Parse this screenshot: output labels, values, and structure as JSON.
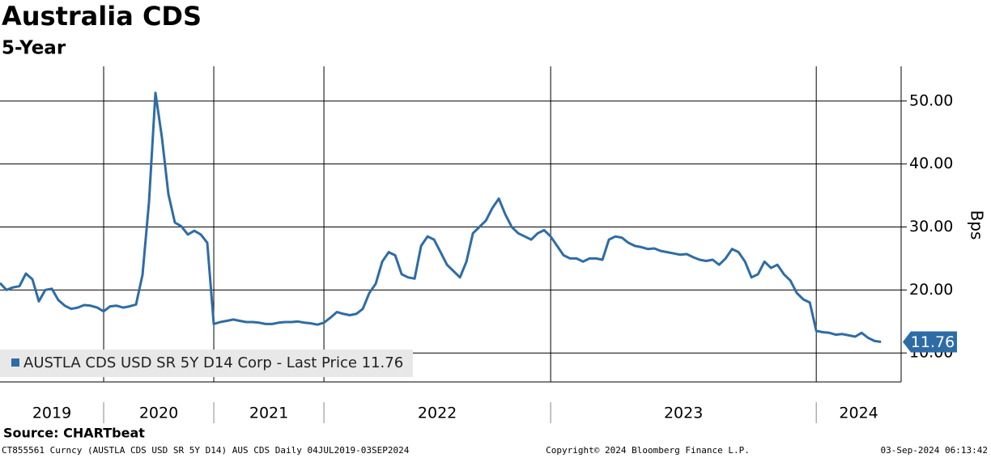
{
  "chart_data": {
    "type": "line",
    "title": "Australia CDS",
    "subtitle": "5-Year",
    "y_label": "Bps",
    "categories": [
      "2019",
      null,
      null,
      null,
      null,
      null,
      null,
      null,
      null,
      null,
      null,
      null,
      null,
      null,
      null,
      null,
      "2020",
      null,
      null,
      null,
      null,
      null,
      null,
      null,
      null,
      null,
      null,
      null,
      null,
      null,
      null,
      null,
      null,
      "2021",
      null,
      null,
      null,
      null,
      null,
      null,
      null,
      null,
      null,
      null,
      null,
      null,
      null,
      null,
      null,
      null,
      "2022",
      null,
      null,
      null,
      null,
      null,
      null,
      null,
      null,
      null,
      null,
      null,
      null,
      null,
      null,
      null,
      null,
      null,
      null,
      null,
      null,
      null,
      null,
      null,
      null,
      null,
      null,
      null,
      null,
      null,
      null,
      null,
      null,
      null,
      null,
      "2023",
      null,
      null,
      null,
      null,
      null,
      null,
      null,
      null,
      null,
      null,
      null,
      null,
      null,
      null,
      null,
      null,
      null,
      null,
      null,
      null,
      null,
      null,
      null,
      null,
      null,
      null,
      null,
      null,
      null,
      null,
      null,
      null,
      null,
      null,
      null,
      null,
      null,
      null,
      null,
      null,
      "2024",
      null,
      null,
      null,
      null,
      null,
      null,
      null,
      null,
      null,
      null
    ],
    "series": [
      {
        "name": "AUSTLA CDS USD SR 5Y D14 Corp - Last Price 11.76",
        "color": "#2e6ca6",
        "values": [
          21.1,
          20.0,
          20.4,
          20.6,
          22.6,
          21.7,
          18.2,
          20.0,
          20.2,
          18.4,
          17.5,
          17.0,
          17.2,
          17.6,
          17.5,
          17.2,
          16.6,
          17.4,
          17.5,
          17.2,
          17.4,
          17.7,
          22.4,
          33.9,
          51.3,
          44.2,
          35.2,
          30.7,
          30.1,
          28.8,
          29.4,
          28.8,
          27.5,
          14.6,
          14.9,
          15.1,
          15.3,
          15.1,
          14.9,
          14.9,
          14.8,
          14.6,
          14.6,
          14.8,
          14.9,
          14.9,
          15.0,
          14.8,
          14.7,
          14.5,
          14.8,
          15.6,
          16.5,
          16.2,
          16.0,
          16.2,
          17.0,
          19.5,
          21.0,
          24.5,
          26.0,
          25.5,
          22.5,
          22.0,
          21.8,
          27.0,
          28.5,
          28.0,
          26.0,
          24.0,
          23.0,
          22.0,
          24.5,
          29.0,
          30.0,
          31.0,
          33.0,
          34.5,
          32.0,
          30.0,
          29.0,
          28.5,
          28.0,
          29.0,
          29.5,
          28.5,
          27.0,
          25.5,
          25.0,
          25.0,
          24.5,
          25.0,
          25.0,
          24.8,
          28.0,
          28.5,
          28.3,
          27.5,
          27.0,
          26.8,
          26.5,
          26.6,
          26.2,
          26.0,
          25.8,
          25.6,
          25.7,
          25.2,
          24.8,
          24.6,
          24.8,
          24.0,
          25.0,
          26.5,
          26.0,
          24.5,
          22.0,
          22.5,
          24.5,
          23.5,
          24.0,
          22.5,
          21.5,
          19.5,
          18.5,
          18.0,
          13.5,
          13.3,
          13.2,
          12.9,
          13.0,
          12.8,
          12.6,
          13.2,
          12.4,
          11.9,
          11.76
        ],
        "last_value_label": "11.76"
      }
    ],
    "ylim": [
      5.4,
      55.5
    ],
    "yticks": [
      {
        "value": 10,
        "label": "10.00"
      },
      {
        "value": 20,
        "label": "20.00"
      },
      {
        "value": 30,
        "label": "30.00"
      },
      {
        "value": 40,
        "label": "40.00"
      },
      {
        "value": 50,
        "label": "50.00"
      }
    ],
    "grid": true,
    "legend": "bottom-left",
    "source": "Source: CHARTbeat",
    "footer_left": "CT855561 Curncy (AUSTLA CDS USD SR 5Y D14) AUS CDS  Daily 04JUL2019-03SEP2024",
    "footer_center": "Copyright© 2024 Bloomberg Finance L.P.",
    "footer_right": "03-Sep-2024 06:13:42"
  }
}
